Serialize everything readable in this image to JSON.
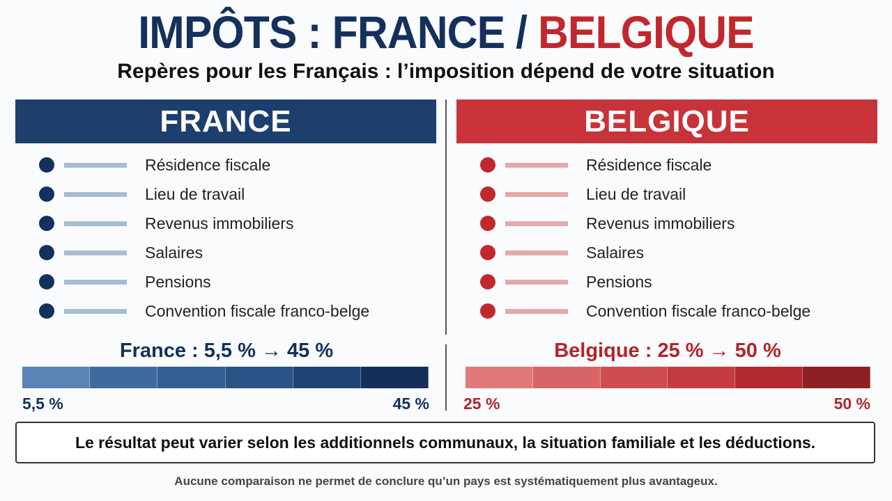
{
  "title": {
    "part1": "IMPÔTS : FRANCE /",
    "part2": "BELGIQUE"
  },
  "subtitle": "Repères pour les Français : l’imposition dépend de votre situation",
  "panels": [
    {
      "header": "FRANCE",
      "items": [
        "Résidence fiscale",
        "Lieu de travail",
        "Revenus immobiliers",
        "Salaires",
        "Pensions",
        "Convention fiscale franco-belge"
      ],
      "rate_label": "France : 5,5 % → 45 %",
      "scale_min": "5,5 %",
      "scale_max": "45 %"
    },
    {
      "header": "BELGIQUE",
      "items": [
        "Résidence fiscale",
        "Lieu de travail",
        "Revenus immobiliers",
        "Salaires",
        "Pensions",
        "Convention fiscale franco-belge"
      ],
      "rate_label": "Belgique : 25 % → 50 %",
      "scale_min": "25 %",
      "scale_max": "50 %"
    }
  ],
  "note": "Le résultat peut varier selon les additionnels communaux, la situation familiale et les déductions.",
  "footer": "Aucune comparaison ne permet de conclure qu’un pays est systématiquement plus avantageux."
}
